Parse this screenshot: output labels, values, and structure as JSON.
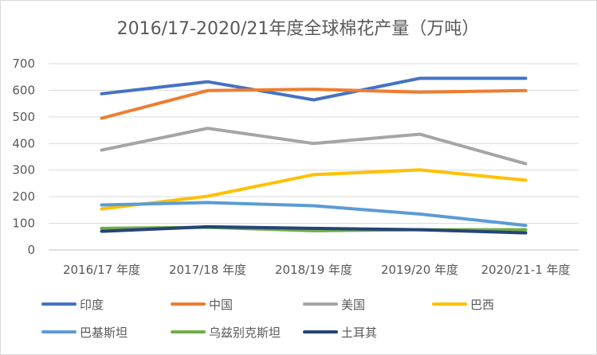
{
  "chart_data": {
    "type": "line",
    "title": "2016/17-2020/21年度全球棉花产量（万吨）",
    "xlabel": "",
    "ylabel": "",
    "ylim": [
      0,
      700
    ],
    "yticks": [
      0,
      100,
      200,
      300,
      400,
      500,
      600,
      700
    ],
    "grid": true,
    "legend_position": "bottom",
    "categories": [
      "2016/17 年度",
      "2017/18 年度",
      "2018/19 年度",
      "2019/20 年度",
      "2020/21-1 年度"
    ],
    "series": [
      {
        "name": "印度",
        "color": "#4472c4",
        "values": [
          587,
          632,
          564,
          645,
          645
        ]
      },
      {
        "name": "中国",
        "color": "#ed7d31",
        "values": [
          495,
          599,
          604,
          593,
          599
        ]
      },
      {
        "name": "美国",
        "color": "#a5a5a5",
        "values": [
          375,
          457,
          400,
          435,
          324
        ]
      },
      {
        "name": "巴西",
        "color": "#ffc000",
        "values": [
          154,
          202,
          283,
          301,
          262
        ]
      },
      {
        "name": "巴基斯坦",
        "color": "#5b9bd5",
        "values": [
          169,
          178,
          166,
          135,
          92
        ]
      },
      {
        "name": "乌兹别克斯坦",
        "color": "#70ad47",
        "values": [
          81,
          85,
          72,
          76,
          76
        ]
      },
      {
        "name": "土耳其",
        "color": "#264478",
        "values": [
          70,
          87,
          81,
          76,
          64
        ]
      }
    ]
  }
}
